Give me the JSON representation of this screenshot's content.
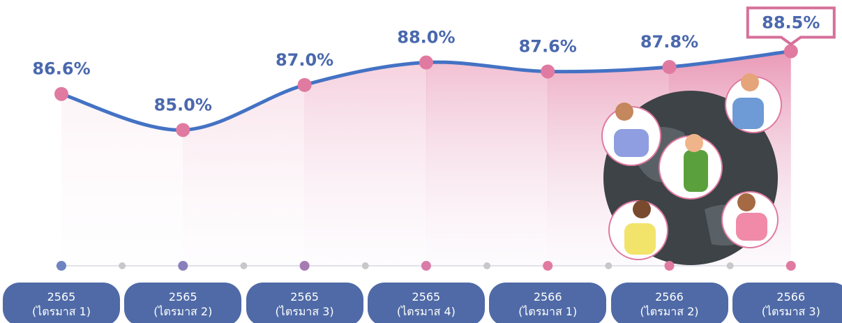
{
  "chart_data": {
    "type": "line",
    "categories": [
      "2565\n(ไตรมาส 1)",
      "2565\n(ไตรมาส 2)",
      "2565\n(ไตรมาส 3)",
      "2565\n(ไตรมาส 4)",
      "2566\n(ไตรมาส 1)",
      "2566\n(ไตรมาส 2)",
      "2566\n(ไตรมาส 3)"
    ],
    "values": [
      86.6,
      85.0,
      87.0,
      88.0,
      87.6,
      87.8,
      88.5
    ],
    "value_labels": [
      "86.6%",
      "85.0%",
      "87.0%",
      "88.0%",
      "87.6%",
      "87.8%",
      "88.5%"
    ],
    "color": "#4472c4",
    "marker_color": "#e07aa0",
    "ylim": [
      79,
      90
    ]
  }
}
